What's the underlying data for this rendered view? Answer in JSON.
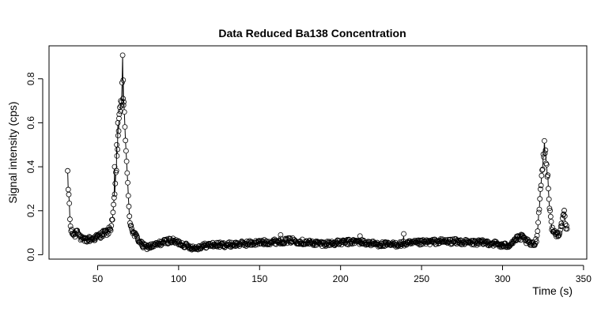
{
  "chart_data": {
    "type": "scatter",
    "title": "Data Reduced Ba138 Concentration",
    "xlabel": "Time (s)",
    "ylabel": "Signal intensity (cps)",
    "xlim": [
      20,
      352
    ],
    "ylim": [
      -0.02,
      0.95
    ],
    "xticks": [
      50,
      100,
      150,
      200,
      250,
      300,
      350
    ],
    "yticks": [
      0.0,
      0.2,
      0.4,
      0.6,
      0.8
    ],
    "xtick_labels": [
      "50",
      "100",
      "150",
      "200",
      "250",
      "300",
      "350"
    ],
    "ytick_labels": [
      "0.0",
      "0.2",
      "0.4",
      "0.6",
      "0.8"
    ],
    "grid": false,
    "legend": "none",
    "marker": "open-circle",
    "line_segments": "vertical dashes between consecutive points",
    "point_spacing_s": 0.35,
    "profile": [
      [
        31.5,
        0.36
      ],
      [
        31.8,
        0.3
      ],
      [
        32.5,
        0.25
      ],
      [
        33.0,
        0.135
      ],
      [
        34.0,
        0.1
      ],
      [
        36.0,
        0.09
      ],
      [
        37.5,
        0.12
      ],
      [
        39.0,
        0.08
      ],
      [
        41.0,
        0.065
      ],
      [
        44.0,
        0.07
      ],
      [
        48.0,
        0.075
      ],
      [
        52.0,
        0.09
      ],
      [
        54.0,
        0.1
      ],
      [
        56.0,
        0.1
      ],
      [
        58.0,
        0.12
      ],
      [
        59.0,
        0.16
      ],
      [
        60.0,
        0.22
      ],
      [
        61.0,
        0.32
      ],
      [
        62.0,
        0.45
      ],
      [
        63.0,
        0.58
      ],
      [
        64.0,
        0.66
      ],
      [
        65.0,
        0.73
      ],
      [
        65.3,
        0.92
      ],
      [
        66.0,
        0.7
      ],
      [
        67.0,
        0.58
      ],
      [
        68.0,
        0.4
      ],
      [
        69.0,
        0.25
      ],
      [
        70.0,
        0.15
      ],
      [
        72.0,
        0.1
      ],
      [
        74.0,
        0.08
      ],
      [
        76.0,
        0.06
      ],
      [
        78.0,
        0.04
      ],
      [
        80.0,
        0.035
      ],
      [
        84.0,
        0.04
      ],
      [
        88.0,
        0.05
      ],
      [
        92.0,
        0.06
      ],
      [
        95.0,
        0.065
      ],
      [
        100.0,
        0.055
      ],
      [
        105.0,
        0.04
      ],
      [
        110.0,
        0.03
      ],
      [
        115.0,
        0.04
      ],
      [
        120.0,
        0.045
      ],
      [
        130.0,
        0.045
      ],
      [
        140.0,
        0.05
      ],
      [
        150.0,
        0.055
      ],
      [
        160.0,
        0.06
      ],
      [
        170.0,
        0.065
      ],
      [
        180.0,
        0.055
      ],
      [
        190.0,
        0.05
      ],
      [
        200.0,
        0.055
      ],
      [
        210.0,
        0.06
      ],
      [
        220.0,
        0.05
      ],
      [
        230.0,
        0.045
      ],
      [
        240.0,
        0.05
      ],
      [
        250.0,
        0.055
      ],
      [
        260.0,
        0.06
      ],
      [
        270.0,
        0.06
      ],
      [
        280.0,
        0.055
      ],
      [
        290.0,
        0.055
      ],
      [
        296.0,
        0.05
      ],
      [
        300.0,
        0.04
      ],
      [
        304.0,
        0.045
      ],
      [
        308.0,
        0.07
      ],
      [
        312.0,
        0.08
      ],
      [
        315.0,
        0.06
      ],
      [
        318.0,
        0.045
      ],
      [
        320.0,
        0.05
      ],
      [
        321.0,
        0.07
      ],
      [
        322.0,
        0.15
      ],
      [
        323.0,
        0.25
      ],
      [
        324.0,
        0.35
      ],
      [
        325.0,
        0.43
      ],
      [
        326.0,
        0.5
      ],
      [
        327.0,
        0.42
      ],
      [
        328.0,
        0.35
      ],
      [
        329.0,
        0.22
      ],
      [
        330.0,
        0.14
      ],
      [
        331.0,
        0.11
      ],
      [
        333.0,
        0.09
      ],
      [
        335.0,
        0.1
      ],
      [
        337.0,
        0.15
      ],
      [
        338.0,
        0.19
      ],
      [
        339.0,
        0.13
      ],
      [
        340.0,
        0.11
      ]
    ],
    "noise_amplitude": 0.01,
    "outliers": [
      [
        239.0,
        0.095
      ],
      [
        163.0,
        0.09
      ],
      [
        212.0,
        0.085
      ],
      [
        66.0,
        0.68
      ],
      [
        64.3,
        0.7
      ],
      [
        65.7,
        0.71
      ],
      [
        63.2,
        0.62
      ],
      [
        61.8,
        0.5
      ],
      [
        60.5,
        0.4
      ],
      [
        62.5,
        0.6
      ]
    ]
  }
}
